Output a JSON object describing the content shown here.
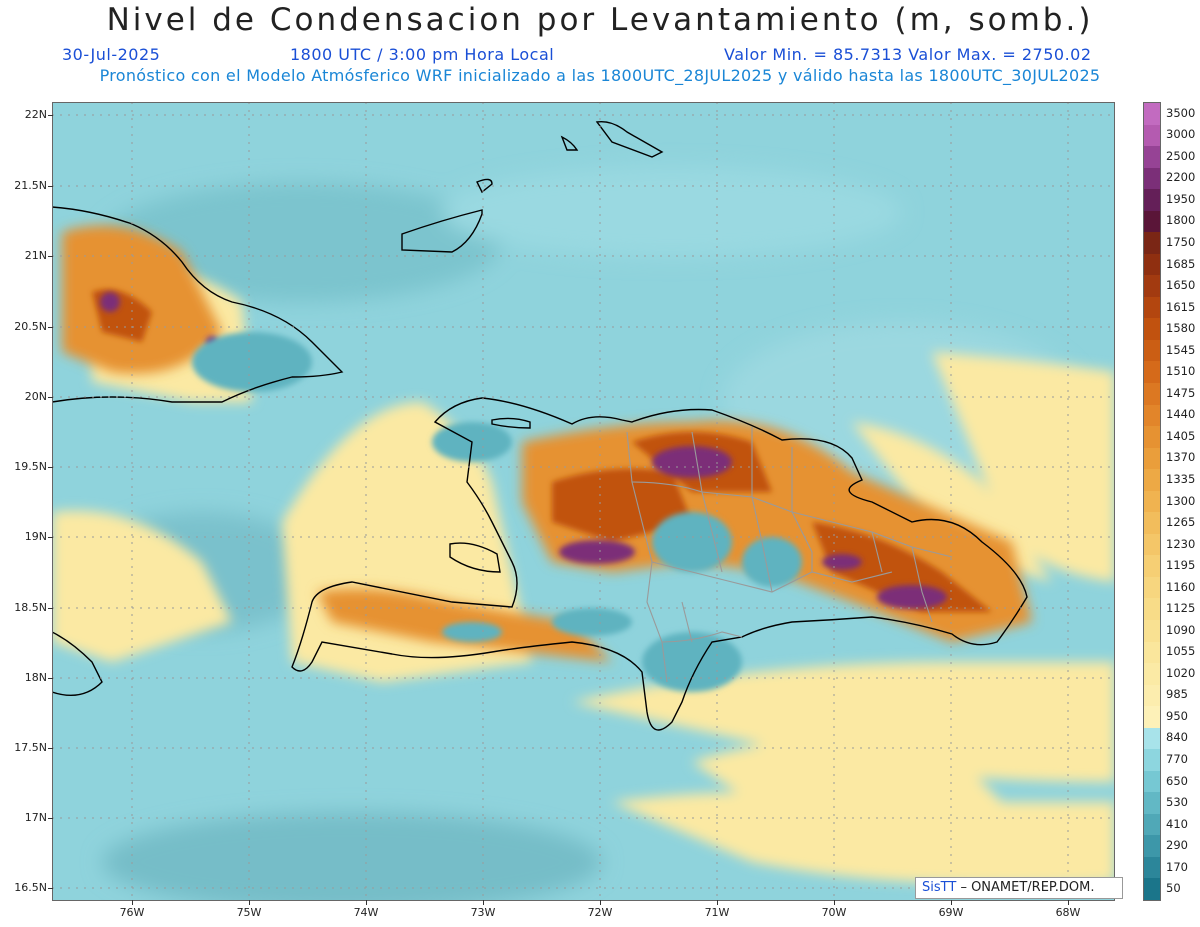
{
  "header": {
    "title": "Nivel de Condensacion por Levantamiento (m, somb.)",
    "date": "30-Jul-2025",
    "time": "1800 UTC / 3:00 pm Hora Local",
    "min_max": "Valor Min. = 85.7313   Valor Max. = 2750.02",
    "model_info": "Pronóstico con el Modelo Atmósferico WRF inicializado a las 1800UTC_28JUL2025 y válido hasta las  1800UTC_30JUL2025"
  },
  "axes": {
    "lat_labels": [
      "22N",
      "21.5N",
      "21N",
      "20.5N",
      "20N",
      "19.5N",
      "19N",
      "18.5N",
      "18N",
      "17.5N",
      "17N",
      "16.5N"
    ],
    "lon_labels": [
      "76W",
      "75W",
      "74W",
      "73W",
      "72W",
      "71W",
      "70W",
      "69W",
      "68W"
    ]
  },
  "legend": {
    "levels": [
      "3500",
      "3000",
      "2500",
      "2200",
      "1950",
      "1800",
      "1750",
      "1685",
      "1650",
      "1615",
      "1580",
      "1545",
      "1510",
      "1475",
      "1440",
      "1405",
      "1370",
      "1335",
      "1300",
      "1265",
      "1230",
      "1195",
      "1160",
      "1125",
      "1090",
      "1055",
      "1020",
      "985",
      "950",
      "840",
      "770",
      "650",
      "530",
      "410",
      "290",
      "170",
      "50"
    ],
    "colors": [
      "#c26bc0",
      "#b45bb0",
      "#964395",
      "#7b2f78",
      "#641f58",
      "#5a1538",
      "#7a2615",
      "#8f2f10",
      "#a23a10",
      "#b3460f",
      "#c1520f",
      "#cb5e14",
      "#d56a1a",
      "#dc7822",
      "#e2852a",
      "#e69232",
      "#ea9e3b",
      "#eda945",
      "#f0b350",
      "#f2bd5c",
      "#f4c668",
      "#f6cf74",
      "#f7d67f",
      "#f8dc88",
      "#f9e192",
      "#fae69c",
      "#fbeaa5",
      "#fcedae",
      "#fdf1b8",
      "#a8e3ea",
      "#8dd6df",
      "#76c8d3",
      "#62b8c5",
      "#50a8b7",
      "#3d97a9",
      "#2c869a",
      "#1b758a"
    ]
  },
  "credit": {
    "sis": "SisTT",
    "org": "– ONAMET/REP.DOM."
  },
  "map_layers": {
    "field": "Nivel de Condensacion por Levantamiento",
    "units": "m",
    "coastline_color": "#000000",
    "province_border_color": "#9a9a9a"
  }
}
